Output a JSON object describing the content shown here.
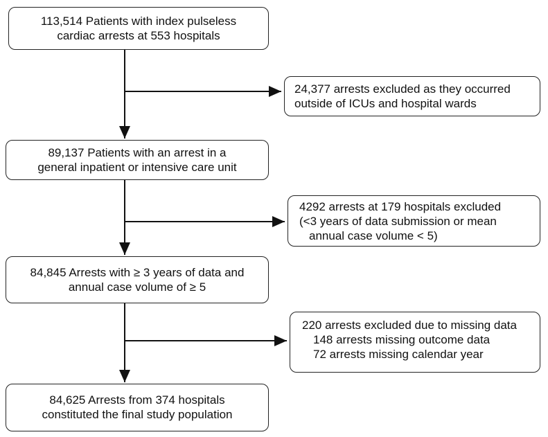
{
  "nodes": [
    {
      "lines": [
        "113,514 Patients with index pulseless",
        "cardiac arrests at 553 hospitals"
      ]
    },
    {
      "lines": [
        "24,377 arrests excluded as they occurred",
        "outside of ICUs and hospital wards"
      ]
    },
    {
      "lines": [
        "89,137 Patients with an arrest in a",
        "general inpatient or intensive care unit"
      ]
    },
    {
      "lines": [
        "4292 arrests at 179 hospitals excluded",
        "(<3 years of data submission or mean",
        "annual case volume < 5)"
      ]
    },
    {
      "lines": [
        "84,845 Arrests with ≥ 3 years of data and",
        "annual case volume of ≥ 5"
      ]
    },
    {
      "lines": [
        "220 arrests excluded due to missing data",
        "148 arrests missing outcome data",
        "72 arrests missing calendar year"
      ]
    },
    {
      "lines": [
        "84,625 Arrests from 374 hospitals",
        "constituted the final study population"
      ]
    }
  ]
}
